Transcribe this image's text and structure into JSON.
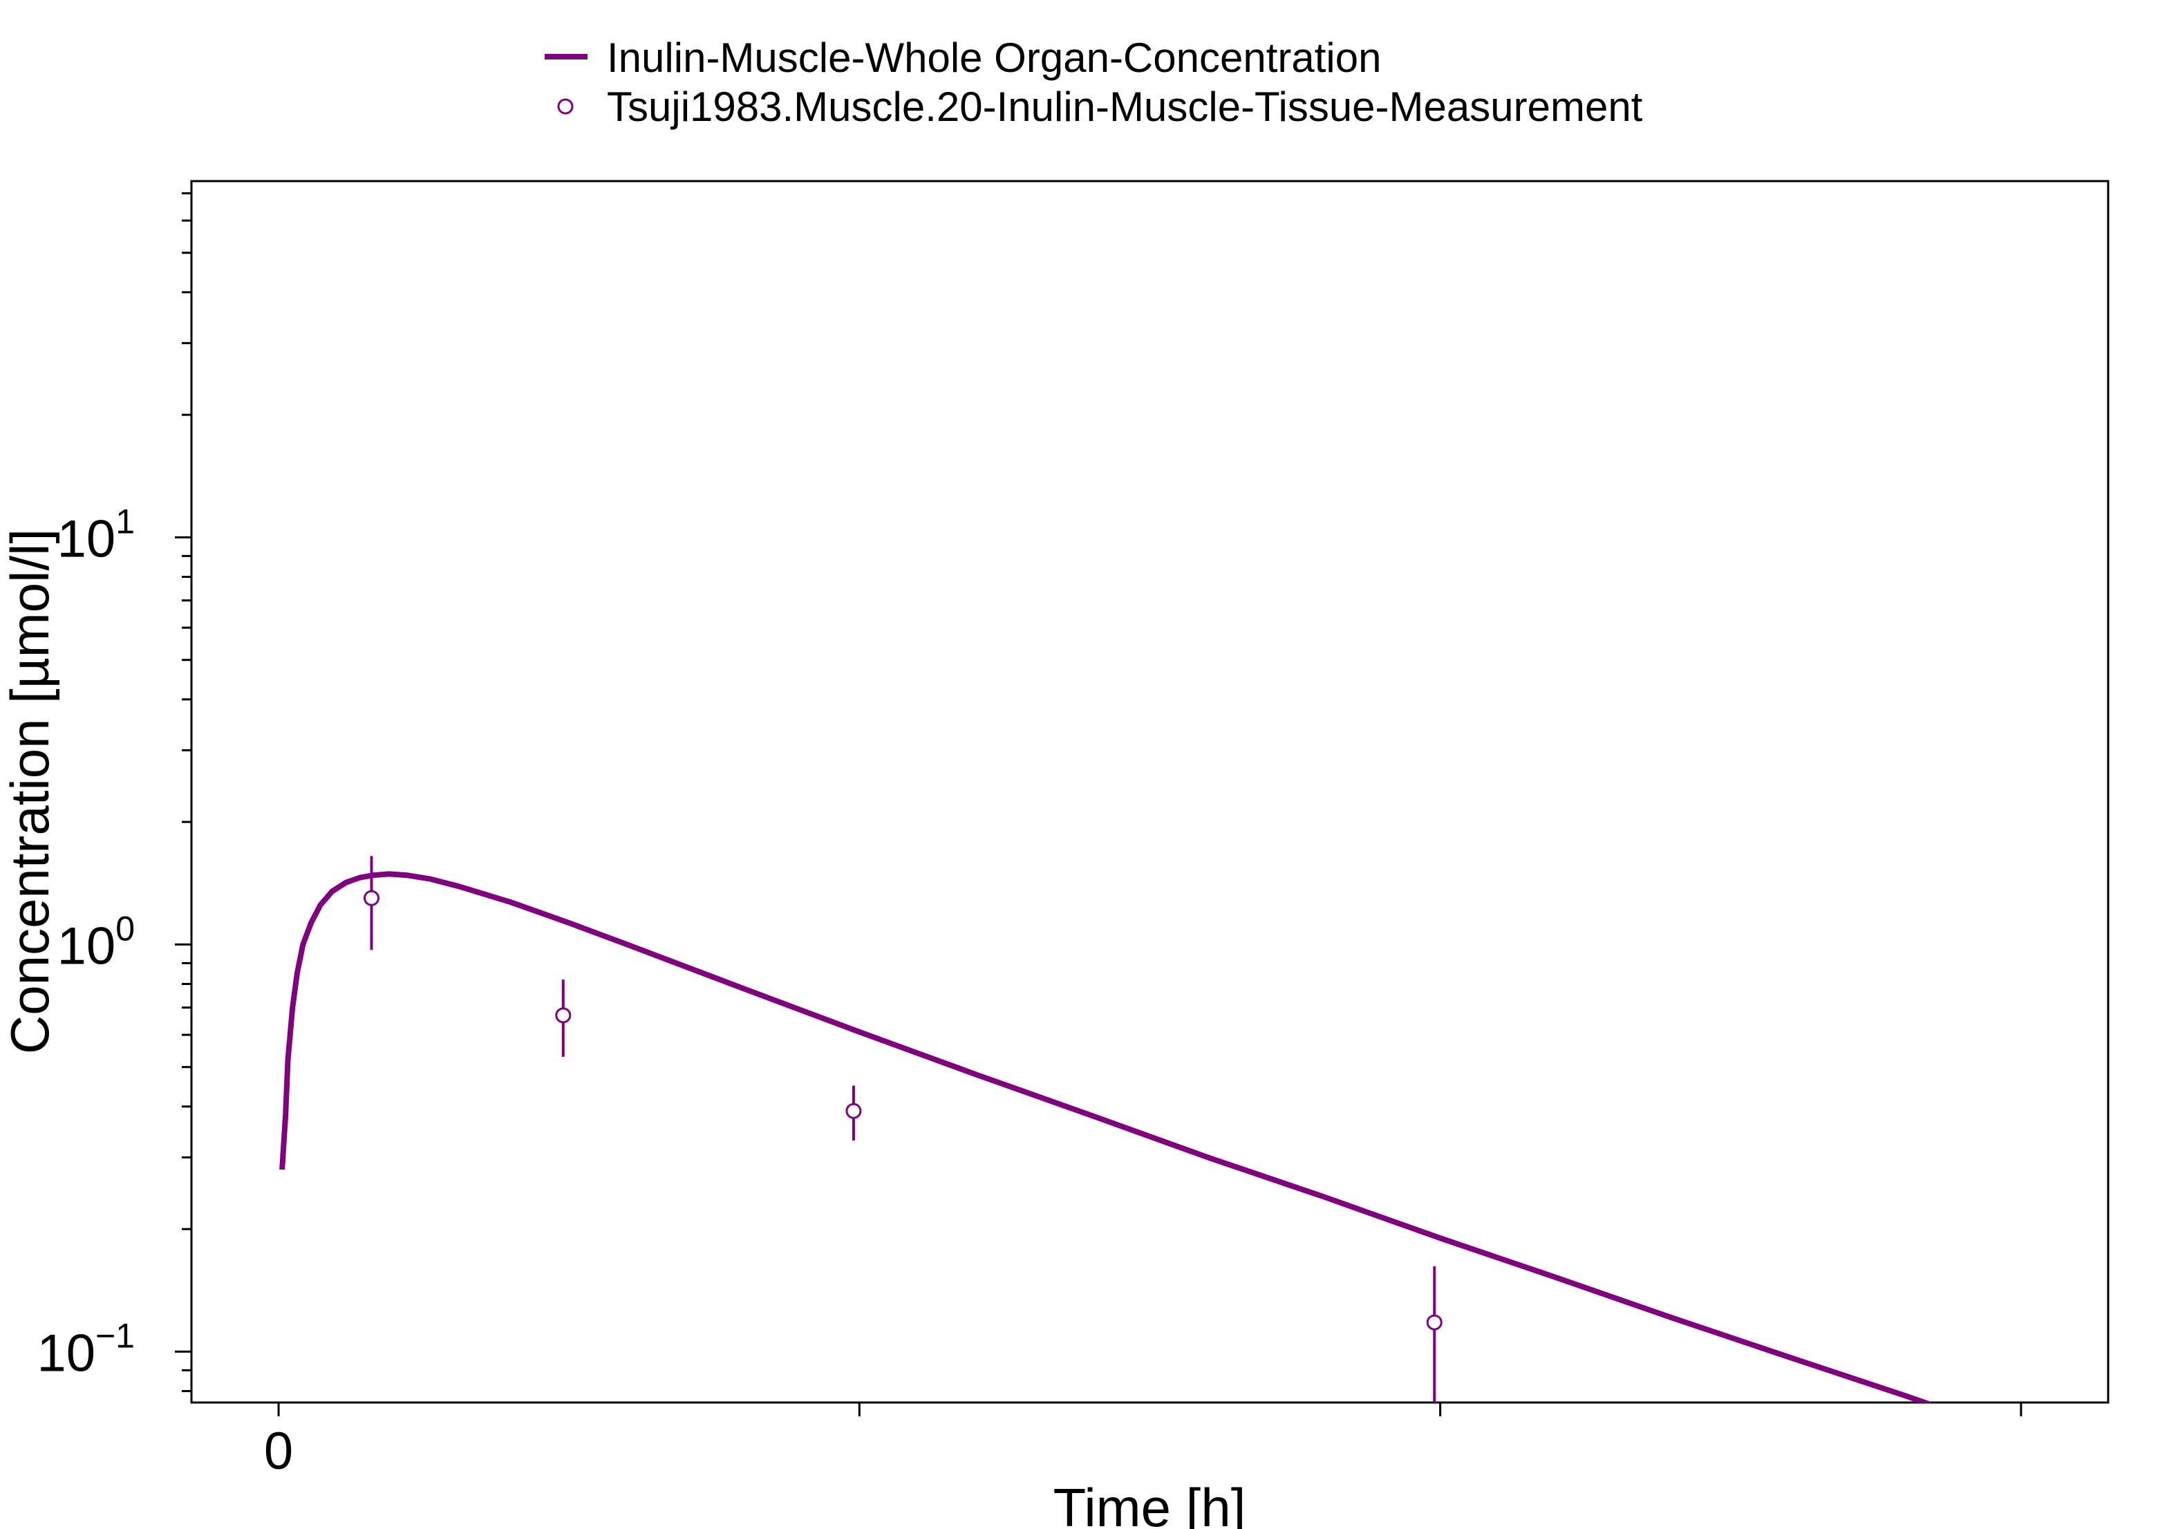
{
  "chart_data": {
    "type": "line",
    "title": "",
    "xlabel": "Time [h]",
    "ylabel": "Concentration [µmol/l]",
    "x_ticks": [
      {
        "value": 0,
        "label": "0"
      },
      {
        "value": 0.5,
        "label": ""
      },
      {
        "value": 1.0,
        "label": ""
      },
      {
        "value": 1.5,
        "label": ""
      }
    ],
    "xlim": [
      -0.075,
      1.575
    ],
    "y_scale": "log",
    "ylim": [
      0.075,
      75
    ],
    "y_ticks": [
      {
        "value": 0.1,
        "base": "10",
        "exp": "−1"
      },
      {
        "value": 1,
        "base": "10",
        "exp": "0"
      },
      {
        "value": 10,
        "base": "10",
        "exp": "1"
      }
    ],
    "legend_position": "top",
    "grid": false,
    "series": [
      {
        "name": "Inulin-Muscle-Whole Organ-Concentration",
        "kind": "line",
        "color": "#800080",
        "x": [
          0.003,
          0.006,
          0.008,
          0.012,
          0.016,
          0.021,
          0.028,
          0.036,
          0.046,
          0.058,
          0.07,
          0.082,
          0.095,
          0.11,
          0.13,
          0.155,
          0.2,
          0.25,
          0.3,
          0.4,
          0.5,
          0.6,
          0.7,
          0.8,
          0.9,
          1.0,
          1.1,
          1.2,
          1.3,
          1.4,
          1.48
        ],
        "y": [
          0.28,
          0.38,
          0.52,
          0.7,
          0.85,
          1.0,
          1.13,
          1.25,
          1.35,
          1.42,
          1.46,
          1.48,
          1.49,
          1.48,
          1.45,
          1.39,
          1.27,
          1.13,
          1.0,
          0.78,
          0.61,
          0.48,
          0.38,
          0.3,
          0.24,
          0.19,
          0.152,
          0.121,
          0.097,
          0.078,
          0.065
        ]
      },
      {
        "name": "Tsuji1983.Muscle.20-Inulin-Muscle-Tissue-Measurement",
        "kind": "scatter",
        "marker": "open-circle",
        "color": "#800080",
        "x": [
          0.08,
          0.245,
          0.495,
          0.995
        ],
        "y": [
          1.3,
          0.67,
          0.39,
          0.118
        ],
        "y_err_low": [
          0.97,
          0.53,
          0.33,
          0.072
        ],
        "y_err_high": [
          1.65,
          0.82,
          0.45,
          0.162
        ]
      }
    ]
  }
}
